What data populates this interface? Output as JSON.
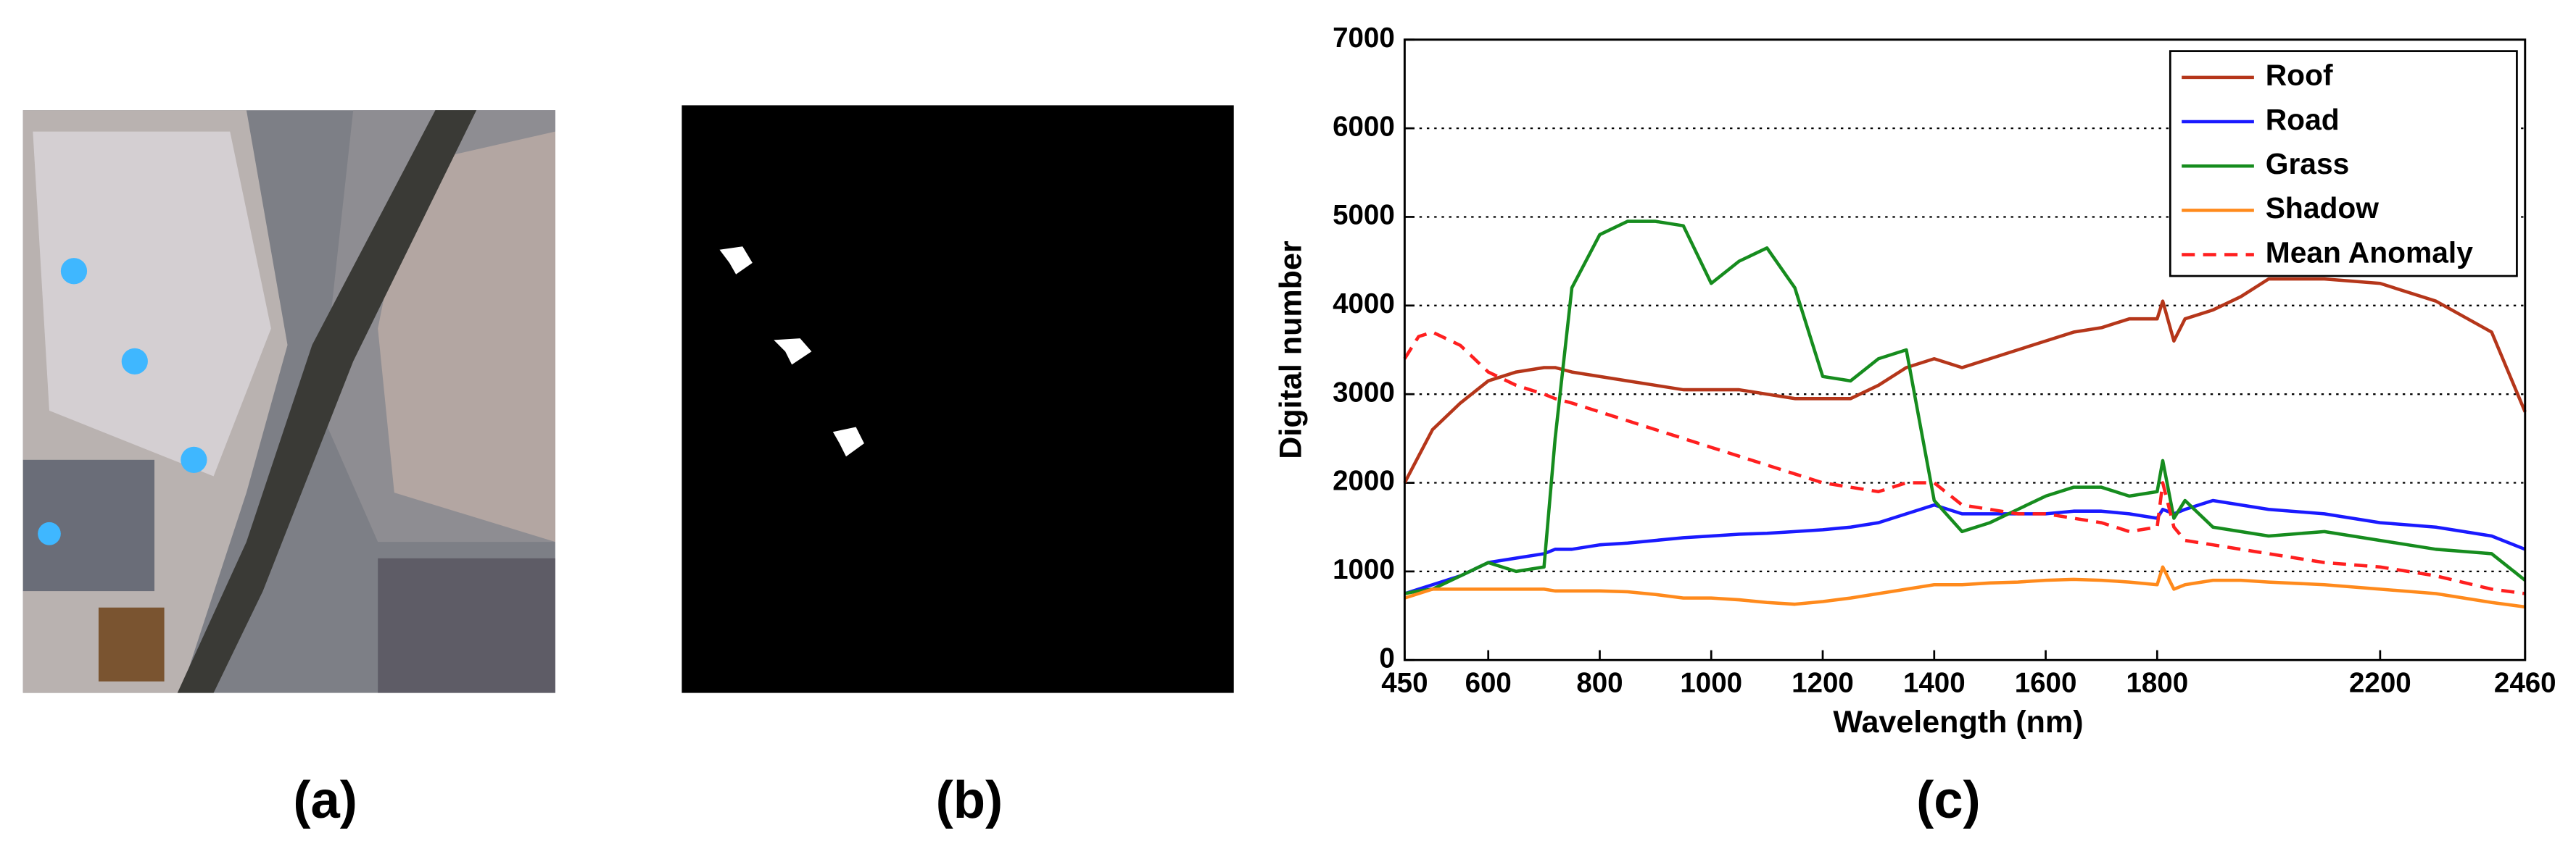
{
  "panel_labels": [
    "(a)",
    "(b)",
    "(c)"
  ],
  "chart_data": {
    "type": "line",
    "xlabel": "Wavelength (nm)",
    "ylabel": "Digital number",
    "xlim": [
      450,
      2460
    ],
    "ylim": [
      0,
      7000
    ],
    "xticks": [
      450,
      600,
      800,
      1000,
      1200,
      1400,
      1600,
      1800,
      2200,
      2460
    ],
    "yticks": [
      0,
      1000,
      2000,
      3000,
      4000,
      5000,
      6000,
      7000
    ],
    "grid": true,
    "legend": "upper right",
    "x": [
      450,
      475,
      500,
      550,
      600,
      650,
      700,
      720,
      750,
      800,
      850,
      900,
      950,
      1000,
      1050,
      1100,
      1150,
      1200,
      1250,
      1300,
      1350,
      1400,
      1450,
      1500,
      1550,
      1600,
      1650,
      1700,
      1750,
      1800,
      1810,
      1830,
      1850,
      1900,
      1950,
      2000,
      2100,
      2200,
      2300,
      2400,
      2460
    ],
    "series": [
      {
        "name": "Roof",
        "color": "#b5361a",
        "style": "solid",
        "values": [
          2000,
          2300,
          2600,
          2900,
          3150,
          3250,
          3300,
          3300,
          3250,
          3200,
          3150,
          3100,
          3050,
          3050,
          3050,
          3000,
          2950,
          2950,
          2950,
          3100,
          3300,
          3400,
          3300,
          3400,
          3500,
          3600,
          3700,
          3750,
          3850,
          3850,
          4050,
          3600,
          3850,
          3950,
          4100,
          4300,
          4300,
          4250,
          4050,
          3700,
          2800
        ]
      },
      {
        "name": "Road",
        "color": "#1a1aff",
        "style": "solid",
        "values": [
          750,
          800,
          850,
          950,
          1100,
          1150,
          1200,
          1250,
          1250,
          1300,
          1320,
          1350,
          1380,
          1400,
          1420,
          1430,
          1450,
          1470,
          1500,
          1550,
          1650,
          1750,
          1650,
          1650,
          1650,
          1650,
          1680,
          1680,
          1650,
          1600,
          1700,
          1650,
          1700,
          1800,
          1750,
          1700,
          1650,
          1550,
          1500,
          1400,
          1250
        ]
      },
      {
        "name": "Grass",
        "color": "#168c1e",
        "style": "solid",
        "values": [
          750,
          780,
          800,
          950,
          1100,
          1000,
          1050,
          2500,
          4200,
          4800,
          4950,
          4950,
          4900,
          4250,
          4500,
          4650,
          4200,
          3200,
          3150,
          3400,
          3500,
          1800,
          1450,
          1550,
          1700,
          1850,
          1950,
          1950,
          1850,
          1900,
          2250,
          1600,
          1800,
          1500,
          1450,
          1400,
          1450,
          1350,
          1250,
          1200,
          900
        ]
      },
      {
        "name": "Shadow",
        "color": "#ff8a1c",
        "style": "solid",
        "values": [
          700,
          750,
          800,
          800,
          800,
          800,
          800,
          780,
          780,
          780,
          770,
          740,
          700,
          700,
          680,
          650,
          630,
          660,
          700,
          750,
          800,
          850,
          850,
          870,
          880,
          900,
          910,
          900,
          880,
          850,
          1050,
          800,
          850,
          900,
          900,
          880,
          850,
          800,
          750,
          650,
          600
        ]
      },
      {
        "name": "Mean Anomaly",
        "color": "#ff1f1f",
        "style": "dashed",
        "values": [
          3400,
          3650,
          3700,
          3550,
          3250,
          3100,
          3000,
          2950,
          2900,
          2800,
          2700,
          2600,
          2500,
          2400,
          2300,
          2200,
          2100,
          2000,
          1950,
          1900,
          2000,
          2000,
          1750,
          1700,
          1650,
          1650,
          1600,
          1550,
          1450,
          1500,
          2000,
          1500,
          1350,
          1300,
          1250,
          1200,
          1100,
          1050,
          950,
          800,
          750
        ]
      }
    ]
  }
}
